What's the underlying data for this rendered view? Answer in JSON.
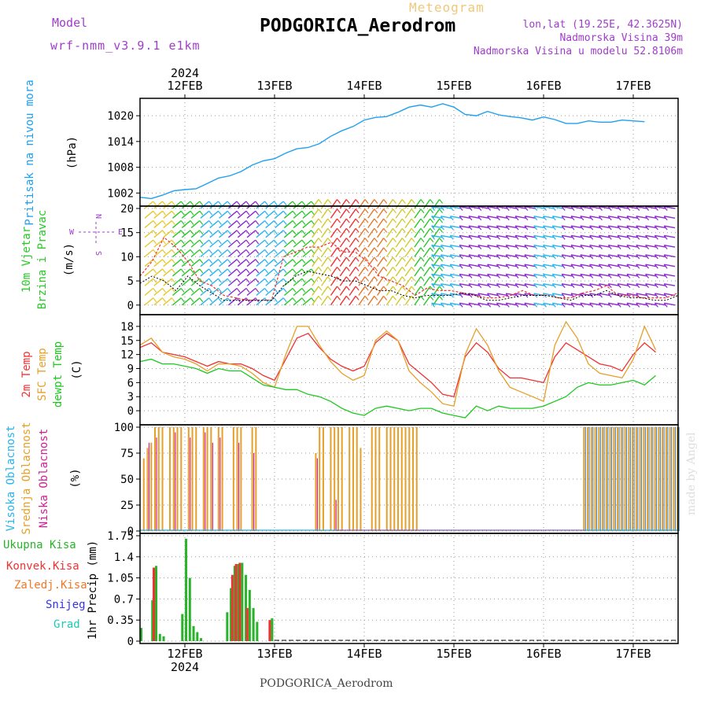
{
  "header": {
    "model_label": "Model",
    "model_name": "wrf-nmm_v3.9.1 e1km",
    "meteogram_label": "Meteogram",
    "station": "PODGORICA_Aerodrom",
    "lonlat": "lon,lat (19.25E, 42.3625N)",
    "elevation": "Nadmorska Visina 39m",
    "model_elevation": "Nadmorska Visina u modelu 52.8106m",
    "footer_station": "PODGORICA_Aerodrom",
    "watermark": "made by Angel"
  },
  "time_axis": {
    "year": "2024",
    "day_labels": [
      "12FEB",
      "13FEB",
      "14FEB",
      "15FEB",
      "16FEB",
      "17FEB"
    ]
  },
  "colors": {
    "pressure": "#1ea0f0",
    "temp2m": "#f03232",
    "sfc_temp": "#e6a028",
    "dewpt": "#1ec81e",
    "visoka": "#28b4f0",
    "srednja": "#e6a028",
    "niska": "#d21e96",
    "ukupna": "#28b428",
    "konvek": "#f03232",
    "zaledj": "#f07828",
    "snijeg": "#3232f0",
    "grad": "#1ec8b4",
    "label_purple": "#a03ccc"
  },
  "chart_data": [
    {
      "type": "line",
      "panel": "pressure",
      "title_lines": [
        "Pritisak na nivou mora"
      ],
      "ylabel": "(hPa)",
      "yticks": [
        1002,
        1008,
        1014,
        1020
      ],
      "ylim": [
        999.5,
        1023.5
      ],
      "x_start_day": 11.5,
      "x_step_days": 0.125,
      "series": [
        {
          "values": [
            1001.0,
            1000.7,
            1001.5,
            1002.5,
            1002.8,
            1003.0,
            1004.2,
            1005.5,
            1006.0,
            1007.0,
            1008.5,
            1009.5,
            1010.0,
            1011.3,
            1012.3,
            1012.6,
            1013.5,
            1015.2,
            1016.5,
            1017.5,
            1019.0,
            1019.6,
            1019.8,
            1020.8,
            1022.0,
            1022.5,
            1022.0,
            1022.8,
            1022.0,
            1020.3,
            1020.0,
            1021.0,
            1020.2,
            1019.8,
            1019.5,
            1019.0,
            1019.7,
            1019.1,
            1018.2,
            1018.2,
            1018.8,
            1018.5,
            1018.5,
            1019.0,
            1018.8,
            1018.6
          ]
        }
      ]
    },
    {
      "type": "barbs",
      "panel": "wind",
      "title_lines": [
        "10m Vjetar",
        "Brzina i Pravac"
      ],
      "ylabel": "(m/s)",
      "yticks": [
        0,
        5,
        10,
        15,
        20
      ],
      "ylim": [
        -1.5,
        20
      ],
      "compass": {
        "n": "N",
        "s": "S",
        "e": "E",
        "w": "W"
      },
      "speed_series": [
        4.5,
        6,
        5,
        3,
        6,
        4,
        2.5,
        1,
        1,
        1,
        1,
        1,
        4,
        6,
        7,
        6.5,
        6,
        5,
        5,
        4,
        3,
        3,
        2,
        1.5,
        2,
        2,
        2,
        2.5,
        2,
        1,
        1,
        1.5,
        2,
        2,
        2,
        1.5,
        1,
        2,
        2,
        3,
        2,
        1.5,
        1.5,
        1,
        1,
        2
      ],
      "gust_series": [
        6,
        9,
        14,
        12,
        9,
        5,
        4,
        2,
        1.5,
        1,
        1,
        1,
        10,
        11,
        12,
        12,
        13,
        11,
        11,
        9,
        6,
        5,
        4,
        2,
        3.5,
        3,
        3,
        2.5,
        2,
        1.5,
        1.5,
        2,
        3,
        2,
        2,
        1.5,
        1.5,
        2.5,
        3,
        4,
        2,
        2,
        1.5,
        1.5,
        1.5,
        2.5
      ]
    },
    {
      "type": "line",
      "panel": "temperature",
      "title_lines": [
        "2m Temp",
        "SFC Temp",
        "dewpt Temp"
      ],
      "ylabel": "(C)",
      "yticks": [
        0,
        3,
        6,
        9,
        12,
        15,
        18
      ],
      "ylim": [
        -2.5,
        20
      ],
      "x_start_day": 11.5,
      "x_step_days": 0.125,
      "series": [
        {
          "name": "2m Temp",
          "values": [
            13.5,
            14.5,
            12.5,
            12.0,
            11.5,
            10.5,
            9.5,
            10.5,
            10.0,
            10.0,
            9.0,
            7.5,
            6.5,
            11.0,
            15.5,
            16.5,
            13.5,
            11.0,
            9.5,
            8.5,
            9.5,
            14.5,
            16.5,
            15.0,
            10.0,
            8.0,
            6.0,
            3.5,
            3.0,
            11.5,
            14.5,
            12.5,
            9.0,
            7.0,
            7.0,
            6.5,
            6.0,
            11.5,
            14.5,
            13.0,
            11.5,
            10.0,
            9.5,
            8.5,
            12.0,
            14.5,
            12.5
          ]
        },
        {
          "name": "SFC Temp",
          "values": [
            14.0,
            15.5,
            12.5,
            11.5,
            11.0,
            10.0,
            8.5,
            10.0,
            10.0,
            9.5,
            8.0,
            6.0,
            5.0,
            12.0,
            18.0,
            18.0,
            14.0,
            10.5,
            8.0,
            6.5,
            7.5,
            15.0,
            17.0,
            15.0,
            8.5,
            6.0,
            4.0,
            1.5,
            1.0,
            12.0,
            17.5,
            14.0,
            8.5,
            5.0,
            4.0,
            3.0,
            2.0,
            14.0,
            19.0,
            15.5,
            10.0,
            8.0,
            7.5,
            7.0,
            11.0,
            18.0,
            13.0
          ]
        },
        {
          "name": "dewpt Temp",
          "values": [
            10.5,
            11.0,
            10.0,
            10.0,
            9.5,
            9.0,
            8.0,
            9.0,
            8.5,
            8.5,
            7.0,
            5.5,
            5.0,
            4.5,
            4.5,
            3.5,
            3.0,
            2.0,
            0.5,
            -0.5,
            -1.0,
            0.5,
            1.0,
            0.5,
            0.0,
            0.5,
            0.5,
            -0.5,
            -1.0,
            -1.5,
            1.0,
            0.0,
            1.0,
            0.5,
            0.5,
            0.5,
            1.0,
            2.0,
            3.0,
            5.0,
            6.0,
            5.5,
            5.5,
            6.0,
            6.5,
            5.5,
            7.5
          ]
        }
      ]
    },
    {
      "type": "bar",
      "panel": "clouds",
      "title_lines": [
        "Visoka Oblacnost",
        "Srednja Oblacnost",
        "Niska Oblacnost"
      ],
      "ylabel": "(%)",
      "yticks": [
        0,
        25,
        50,
        75,
        100
      ],
      "ylim": [
        0,
        100
      ],
      "x_start_day": 11.5,
      "x_step_days": 0.0417,
      "series": [
        {
          "name": "Srednja Oblacnost",
          "values": [
            0,
            70,
            80,
            85,
            100,
            100,
            100,
            0,
            100,
            100,
            100,
            100,
            0,
            100,
            100,
            100,
            0,
            100,
            100,
            100,
            0,
            100,
            100,
            0,
            0,
            100,
            100,
            100,
            0,
            0,
            100,
            100,
            0,
            0,
            0,
            0,
            0,
            0,
            0,
            0,
            0,
            0,
            0,
            0,
            0,
            0,
            0,
            75,
            100,
            100,
            0,
            100,
            100,
            100,
            100,
            0,
            100,
            100,
            100,
            80,
            0,
            0,
            100,
            100,
            100,
            0,
            100,
            100,
            100,
            100,
            100,
            100,
            100,
            100,
            100,
            0
          ]
        },
        {
          "name": "Niska Oblacnost",
          "values": [
            0,
            0,
            85,
            0,
            90,
            0,
            0,
            0,
            0,
            95,
            0,
            0,
            0,
            90,
            0,
            0,
            0,
            95,
            0,
            85,
            0,
            90,
            0,
            0,
            0,
            0,
            85,
            0,
            0,
            0,
            75,
            0,
            0,
            0,
            0,
            0,
            0,
            0,
            0,
            0,
            0,
            0,
            0,
            0,
            0,
            0,
            0,
            70,
            0,
            0,
            0,
            0,
            30,
            0,
            0,
            0,
            0,
            0,
            0,
            0,
            0,
            0,
            0,
            0,
            0,
            0,
            0,
            0,
            0,
            0,
            0,
            0,
            0,
            0,
            0,
            0
          ]
        },
        {
          "name": "Visoka Oblacnost",
          "values": []
        }
      ],
      "late_block": {
        "start_day": 16.45,
        "end_day": 17.5,
        "value": 100
      }
    },
    {
      "type": "bar",
      "panel": "precip",
      "title_lines": [
        "Ukupna Kisa",
        "Konvek.Kisa",
        "Zaledj.Kisa",
        "Snijeg",
        "Grad"
      ],
      "ylabel": "1hr Precip (mm)",
      "yticks": [
        0,
        0.35,
        0.7,
        1.05,
        1.4,
        1.75
      ],
      "ytick_labels": [
        "0",
        "0.35",
        "0.7",
        "1.05",
        "1.4",
        "1.75"
      ],
      "ylim": [
        0,
        1.75
      ],
      "x_start_day": 11.5,
      "x_step_days": 0.0417,
      "series": [
        {
          "name": "Ukupna Kisa",
          "values": [
            0.22,
            0,
            0,
            0.68,
            1.25,
            0.12,
            0.08,
            0,
            0,
            0,
            0,
            0.45,
            1.7,
            1.05,
            0.25,
            0.15,
            0.05,
            0,
            0,
            0,
            0,
            0,
            0,
            0.48,
            0.88,
            1.25,
            1.28,
            1.3,
            1.1,
            0.85,
            0.55,
            0.32,
            0,
            0,
            0,
            0.38
          ]
        },
        {
          "name": "Konvek.Kisa",
          "values": [
            0,
            0,
            0,
            0,
            1.22,
            0,
            0,
            0,
            0,
            0,
            0,
            0,
            0,
            0,
            0,
            0,
            0,
            0,
            0,
            0,
            0,
            0,
            0,
            0,
            0,
            1.1,
            1.28,
            1.3,
            0,
            0.55,
            0,
            0,
            0,
            0,
            0,
            0.35
          ]
        }
      ]
    }
  ]
}
